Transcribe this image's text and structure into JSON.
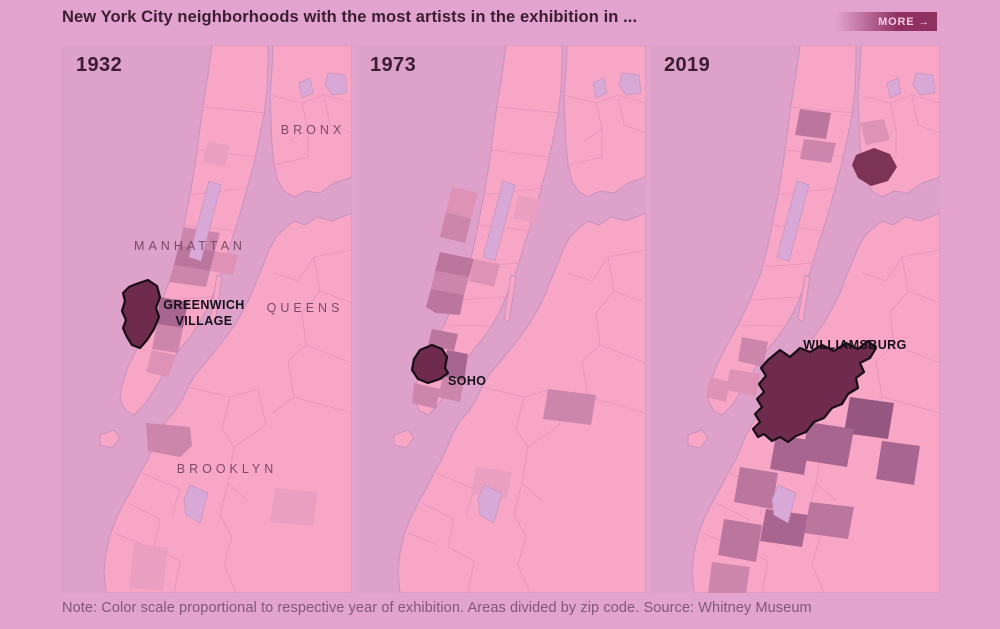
{
  "header": {
    "title": "New York City neighborhoods with the most artists in the exhibition in ...",
    "more_label": "MORE →"
  },
  "footer": {
    "note": "Note: Color scale proportional to respective year of exhibition. Areas divided by zip code. Source: Whitney Museum"
  },
  "boroughs": {
    "bronx": "BRONX",
    "manhattan": "MANHATTAN",
    "queens": "QUEENS",
    "brooklyn": "BROOKLYN"
  },
  "panels": [
    {
      "year": "1932",
      "highlight_name": "Greenwich Village",
      "highlight_line1": "GREENWICH",
      "highlight_line2": "VILLAGE",
      "areas": [
        {
          "name": "uws-faint",
          "shade": "s1"
        },
        {
          "name": "hells-kitchen",
          "shade": "s3"
        },
        {
          "name": "chelsea",
          "shade": "s4"
        },
        {
          "name": "murray-hill",
          "shade": "s2"
        },
        {
          "name": "west-14th",
          "shade": "s3"
        },
        {
          "name": "east-village",
          "shade": "s5"
        },
        {
          "name": "lower-east-side",
          "shade": "s3"
        },
        {
          "name": "les-south",
          "shade": "s2"
        },
        {
          "name": "navy-yard",
          "shade": "s3"
        },
        {
          "name": "bed-stuy-faint",
          "shade": "s1"
        },
        {
          "name": "sunset-faint",
          "shade": "s1"
        }
      ]
    },
    {
      "year": "1973",
      "highlight_name": "SoHo",
      "highlight_line1": "SOHO",
      "highlight_line2": "",
      "areas": [
        {
          "name": "uws",
          "shade": "s2"
        },
        {
          "name": "uws-south",
          "shade": "s3"
        },
        {
          "name": "ues-faint",
          "shade": "s1"
        },
        {
          "name": "hells-kitchen-73",
          "shade": "s4"
        },
        {
          "name": "chelsea-73",
          "shade": "s3"
        },
        {
          "name": "midtown-east",
          "shade": "s2"
        },
        {
          "name": "west-village",
          "shade": "s4"
        },
        {
          "name": "noho",
          "shade": "s4"
        },
        {
          "name": "east-village-73",
          "shade": "s5"
        },
        {
          "name": "lower-east-73",
          "shade": "s3"
        },
        {
          "name": "tribeca",
          "shade": "s3"
        },
        {
          "name": "queens-zip-73",
          "shade": "s3"
        },
        {
          "name": "brooklyn-faint-73",
          "shade": "s1"
        }
      ]
    },
    {
      "year": "2019",
      "highlight_name": "Williamsburg",
      "highlight_line1": "WILLIAMSBURG",
      "highlight_line2": "",
      "areas": [
        {
          "name": "harlem-north",
          "shade": "s4"
        },
        {
          "name": "harlem-south",
          "shade": "s3"
        },
        {
          "name": "mott-haven",
          "shade": "s2"
        },
        {
          "name": "bronx-zip",
          "shade": "hi2"
        },
        {
          "name": "east-village-19",
          "shade": "s3"
        },
        {
          "name": "lower-east-19",
          "shade": "s2"
        },
        {
          "name": "financial-faint",
          "shade": "s2"
        },
        {
          "name": "bushwick",
          "shade": "s6"
        },
        {
          "name": "bed-stuy",
          "shade": "s5"
        },
        {
          "name": "clinton-hill",
          "shade": "s5"
        },
        {
          "name": "gowanus",
          "shade": "s4"
        },
        {
          "name": "park-slope",
          "shade": "s5"
        },
        {
          "name": "sunset-park",
          "shade": "s4"
        },
        {
          "name": "crown-heights",
          "shade": "s4"
        },
        {
          "name": "ridgewood",
          "shade": "s5"
        },
        {
          "name": "south-brooklyn",
          "shade": "s3"
        }
      ]
    }
  ],
  "colors": {
    "page_bg": "#e3a3cf",
    "water": "#dda1ca",
    "land": "#f8a6c6",
    "park": "#d8a9d6",
    "zip_line": "#e493bb",
    "shore_line": "#c792bd",
    "title_text": "#3b1d33",
    "year_text": "#3b1d33",
    "borough_text": "#7c4a68",
    "note_text": "#81577a",
    "label_text": "#14101a",
    "more_bg": "#8e3060",
    "more_text": "#f6cde6",
    "highlight_stroke": "#1a0d16",
    "shades": {
      "s1": "#eb9fc0",
      "s2": "#dd92b6",
      "s3": "#cc85ab",
      "s4": "#bb769e",
      "s5": "#a76590",
      "s6": "#955681",
      "hi": "#6e2b4e",
      "hi2": "#7c3356"
    }
  }
}
